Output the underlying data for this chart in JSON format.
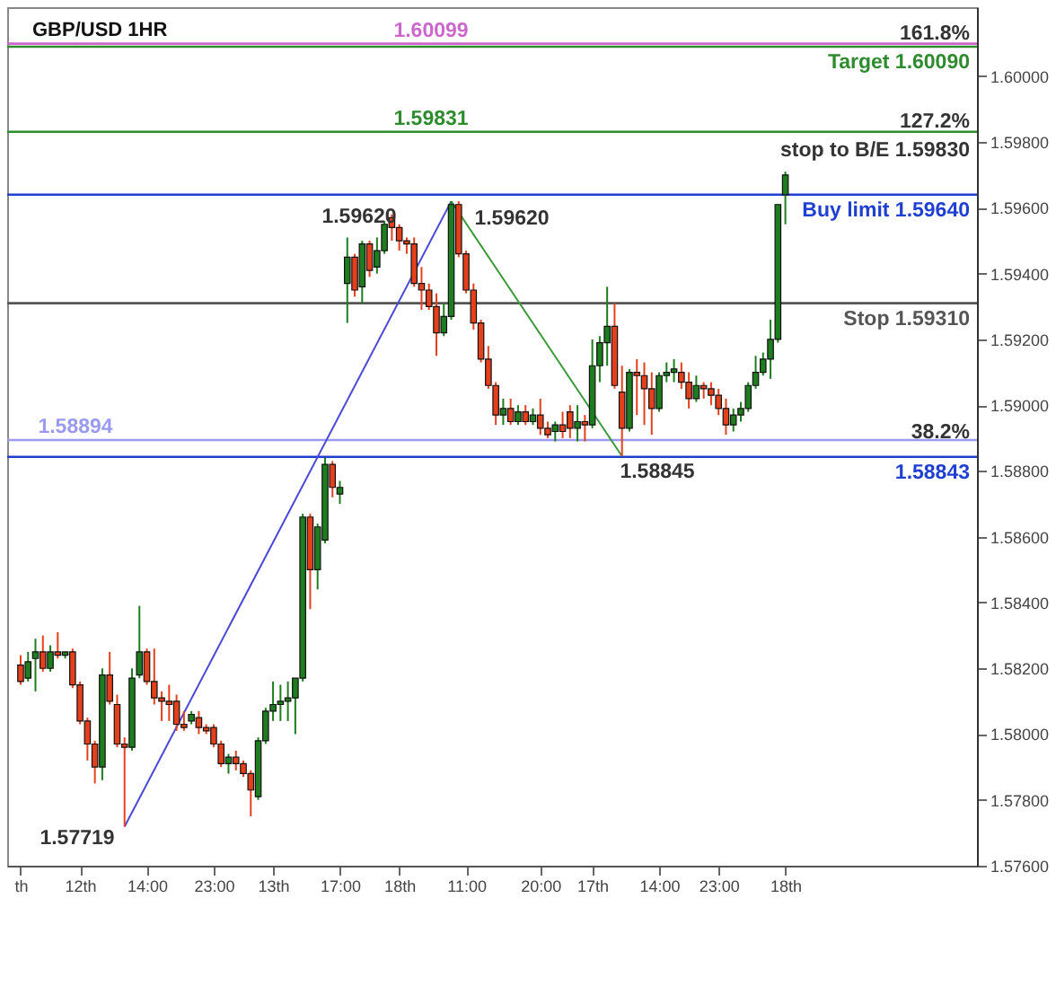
{
  "chart_data": {
    "type": "candlestick",
    "title": "GBP/USD 1HR",
    "categories": [
      "th",
      null,
      null,
      null,
      null,
      null,
      null,
      null,
      "12th",
      null,
      null,
      null,
      null,
      null,
      null,
      null,
      null,
      "14:00",
      null,
      null,
      null,
      null,
      null,
      null,
      null,
      null,
      "23:00",
      null,
      null,
      null,
      null,
      null,
      null,
      null,
      "13th",
      null,
      null,
      null,
      null,
      null,
      null,
      null,
      null,
      "17:00",
      null,
      null,
      null,
      null,
      null,
      null,
      null,
      "18th",
      null,
      null,
      null,
      null,
      null,
      null,
      null,
      null,
      "11:00",
      null,
      null,
      null,
      null,
      null,
      null,
      null,
      null,
      null,
      "20:00",
      null,
      null,
      null,
      null,
      null,
      null,
      "17th",
      null,
      null,
      null,
      null,
      null,
      null,
      null,
      null,
      "14:00",
      null,
      null,
      null,
      null,
      null,
      null,
      null,
      "23:00",
      null,
      null,
      null,
      null,
      null,
      null,
      null,
      null,
      "18th",
      null,
      null,
      null,
      null,
      null,
      null,
      null,
      null,
      null,
      null,
      null,
      null,
      null,
      null,
      null,
      null,
      null,
      null,
      null,
      null,
      null,
      null,
      null,
      null
    ],
    "ylim": [
      1.576,
      1.6021
    ],
    "yticks": [
      {
        "value": 1.576,
        "label": "1.57600"
      },
      {
        "value": 1.578,
        "label": "1.57800"
      },
      {
        "value": 1.58,
        "label": "1.58000"
      },
      {
        "value": 1.582,
        "label": "1.58200"
      },
      {
        "value": 1.584,
        "label": "1.58400"
      },
      {
        "value": 1.586,
        "label": "1.58600"
      },
      {
        "value": 1.588,
        "label": "1.58800"
      },
      {
        "value": 1.59,
        "label": "1.59000"
      },
      {
        "value": 1.592,
        "label": "1.59200"
      },
      {
        "value": 1.594,
        "label": "1.59400"
      },
      {
        "value": 1.596,
        "label": "1.59600"
      },
      {
        "value": 1.598,
        "label": "1.59800"
      },
      {
        "value": 1.6,
        "label": "1.60000"
      }
    ],
    "series": [
      {
        "type": "line",
        "color": "#4a4ad8",
        "values": [
          null,
          null,
          null,
          null,
          null,
          null,
          null,
          null,
          null,
          null,
          null,
          null,
          null,
          null,
          1.57719,
          null,
          null,
          null,
          null,
          null,
          null,
          null,
          null,
          null,
          null,
          null,
          null,
          null,
          null,
          null,
          null,
          null,
          null,
          null,
          null,
          null,
          null,
          null,
          null,
          null,
          null,
          null,
          null,
          null,
          null,
          null,
          null,
          null,
          null,
          null,
          null,
          null,
          null,
          null,
          null,
          null,
          null,
          null,
          1.5962,
          null,
          null,
          null,
          null,
          null,
          null,
          null,
          null,
          null,
          null,
          null,
          null,
          null,
          null,
          null,
          null,
          null,
          null,
          null,
          null,
          null,
          null,
          null,
          null,
          null,
          null,
          null,
          null,
          null,
          null,
          null,
          null,
          null,
          null,
          null,
          null,
          null,
          null,
          null,
          null,
          null,
          null,
          null,
          null,
          null,
          null,
          null,
          null,
          null,
          null,
          null,
          null,
          null,
          null,
          null,
          null,
          null,
          null,
          null,
          null,
          null,
          null,
          null,
          null,
          null,
          null,
          null,
          null,
          null
        ]
      },
      {
        "type": "line",
        "color": "#3a9a3a",
        "values": [
          null,
          null,
          null,
          null,
          null,
          null,
          null,
          null,
          null,
          null,
          null,
          null,
          null,
          null,
          null,
          null,
          null,
          null,
          null,
          null,
          null,
          null,
          null,
          null,
          null,
          null,
          null,
          null,
          null,
          null,
          null,
          null,
          null,
          null,
          null,
          null,
          null,
          null,
          null,
          null,
          null,
          null,
          null,
          null,
          null,
          null,
          null,
          null,
          null,
          null,
          null,
          null,
          null,
          null,
          null,
          null,
          null,
          null,
          1.5962,
          null,
          null,
          null,
          null,
          null,
          null,
          null,
          null,
          null,
          null,
          null,
          null,
          null,
          null,
          null,
          null,
          null,
          null,
          null,
          null,
          null,
          null,
          1.58845,
          null,
          null,
          null,
          null,
          null,
          null,
          null,
          null,
          null,
          null,
          null,
          null,
          null,
          null,
          null,
          null,
          null,
          null,
          null,
          null,
          null,
          null,
          null,
          null,
          null,
          null,
          null,
          null,
          null,
          null,
          null,
          null,
          null,
          null,
          null,
          null,
          null,
          null,
          null,
          null,
          null,
          null,
          null,
          null,
          null,
          null
        ]
      },
      {
        "colors": [
          "#e5401c",
          "#1e7d1e",
          "#1e7d1e",
          "#e5401c",
          "#1e7d1e",
          "#e5401c",
          "#1e7d1e",
          "#e5401c",
          "#e5401c",
          "#e5401c",
          "#e5401c",
          "#1e7d1e",
          "#e5401c",
          "#e5401c",
          "#e5401c",
          "#1e7d1e",
          "#1e7d1e",
          "#e5401c",
          "#e5401c",
          "#e5401c",
          "#e5401c",
          "#e5401c",
          "#e5401c",
          "#1e7d1e",
          "#e5401c",
          "#e5401c",
          "#e5401c",
          "#e5401c",
          "#1e7d1e",
          "#e5401c",
          "#e5401c",
          "#e5401c",
          "#1e7d1e",
          "#1e7d1e",
          "#1e7d1e",
          "#1e7d1e",
          "#1e7d1e",
          "#1e7d1e",
          "#1e7d1e",
          "#e5401c",
          "#1e7d1e",
          "#1e7d1e",
          "#e5401c",
          "#1e7d1e",
          "#1e7d1e",
          "#e5401c",
          "#1e7d1e",
          "#e5401c",
          "#1e7d1e",
          "#1e7d1e",
          "#e5401c",
          "#e5401c",
          "#e5401c",
          "#e5401c",
          "#e5401c",
          "#e5401c",
          "#e5401c",
          "#1e7d1e",
          "#1e7d1e",
          "#e5401c",
          "#e5401c",
          "#e5401c",
          "#e5401c",
          "#e5401c",
          "#e5401c",
          "#1e7d1e",
          "#e5401c",
          "#1e7d1e",
          "#e5401c",
          "#1e7d1e",
          "#e5401c",
          "#e5401c",
          "#1e7d1e",
          "#e5401c",
          "#e5401c",
          "#1e7d1e",
          "#e5401c",
          "#1e7d1e",
          "#1e7d1e",
          "#1e7d1e",
          "#e5401c",
          "#e5401c",
          "#1e7d1e",
          "#e5401c",
          "#e5401c",
          "#e5401c",
          "#1e7d1e",
          "#1e7d1e",
          "#1e7d1e",
          "#e5401c",
          "#e5401c",
          "#1e7d1e",
          "#e5401c",
          "#e5401c",
          "#e5401c",
          "#e5401c",
          "#1e7d1e",
          "#1e7d1e",
          "#1e7d1e",
          "#1e7d1e",
          "#1e7d1e",
          "#1e7d1e",
          "#1e7d1e",
          "#1e7d1e",
          null,
          null,
          null,
          null,
          null,
          null,
          null,
          null,
          null,
          null,
          null,
          null,
          null,
          null,
          null,
          null,
          null,
          null,
          null,
          null,
          null,
          null,
          null,
          null
        ],
        "ohlc": [
          [
            1.5821,
            1.5824,
            1.5815,
            1.5816
          ],
          [
            1.5817,
            1.5825,
            1.5816,
            1.5822
          ],
          [
            1.5823,
            1.5829,
            1.5813,
            1.5825
          ],
          [
            1.5825,
            1.583,
            1.5819,
            1.582
          ],
          [
            1.582,
            1.5827,
            1.5819,
            1.5825
          ],
          [
            1.5825,
            1.5831,
            1.5823,
            1.5824
          ],
          [
            1.5824,
            1.5825,
            1.5823,
            1.5825
          ],
          [
            1.5825,
            1.5826,
            1.5814,
            1.5815
          ],
          [
            1.5815,
            1.5816,
            1.5803,
            1.5804
          ],
          [
            1.5804,
            1.5805,
            1.5792,
            1.5797
          ],
          [
            1.5797,
            1.5798,
            1.5785,
            1.579
          ],
          [
            1.579,
            1.582,
            1.5786,
            1.5818
          ],
          [
            1.5818,
            1.5825,
            1.5809,
            1.581
          ],
          [
            1.5809,
            1.5812,
            1.5796,
            1.5797
          ],
          [
            1.5797,
            1.5799,
            1.57719,
            1.5796
          ],
          [
            1.5796,
            1.582,
            1.5795,
            1.5817
          ],
          [
            1.5818,
            1.5839,
            1.5817,
            1.5825
          ],
          [
            1.5825,
            1.5826,
            1.5815,
            1.5816
          ],
          [
            1.5816,
            1.5826,
            1.5809,
            1.5811
          ],
          [
            1.5811,
            1.5813,
            1.5804,
            1.581
          ],
          [
            1.581,
            1.5815,
            1.5804,
            1.5809
          ],
          [
            1.581,
            1.5812,
            1.5801,
            1.5803
          ],
          [
            1.5803,
            1.5807,
            1.5801,
            1.5802
          ],
          [
            1.5804,
            1.5807,
            1.5803,
            1.5806
          ],
          [
            1.5805,
            1.5807,
            1.58,
            1.5802
          ],
          [
            1.5802,
            1.5803,
            1.58,
            1.5801
          ],
          [
            1.5802,
            1.5803,
            1.5796,
            1.5797
          ],
          [
            1.5797,
            1.5798,
            1.579,
            1.5791
          ],
          [
            1.5791,
            1.5794,
            1.5788,
            1.5793
          ],
          [
            1.5793,
            1.5795,
            1.5789,
            1.5791
          ],
          [
            1.5791,
            1.5792,
            1.5787,
            1.5788
          ],
          [
            1.5788,
            1.5789,
            1.5775,
            1.5783
          ],
          [
            1.5781,
            1.5799,
            1.578,
            1.5798
          ],
          [
            1.5798,
            1.5808,
            1.5797,
            1.5807
          ],
          [
            1.5807,
            1.5816,
            1.5804,
            1.5809
          ],
          [
            1.5809,
            1.5815,
            1.5804,
            1.581
          ],
          [
            1.581,
            1.5816,
            1.5804,
            1.5811
          ],
          [
            1.5811,
            1.5817,
            1.58,
            1.5817
          ],
          [
            1.5817,
            1.5867,
            1.5816,
            1.5866
          ],
          [
            1.5866,
            1.5867,
            1.5838,
            1.585
          ],
          [
            1.585,
            1.5864,
            1.5844,
            1.5863
          ],
          [
            1.5859,
            1.5884,
            1.5858,
            1.5882
          ],
          [
            1.5882,
            1.5883,
            1.5872,
            1.5875
          ],
          [
            1.5873,
            1.5877,
            1.587,
            1.5875
          ],
          [
            1.5937,
            1.5951,
            1.5925,
            1.5945
          ],
          [
            1.5945,
            1.5946,
            1.5933,
            1.5935
          ],
          [
            1.5936,
            1.595,
            1.5931,
            1.5949
          ],
          [
            1.5949,
            1.595,
            1.5939,
            1.5941
          ],
          [
            1.5942,
            1.5951,
            1.594,
            1.5947
          ],
          [
            1.5947,
            1.5956,
            1.5946,
            1.5955
          ],
          [
            1.5957,
            1.5958,
            1.595,
            1.5954
          ],
          [
            1.5954,
            1.5955,
            1.5947,
            1.595
          ],
          [
            1.595,
            1.5951,
            1.5946,
            1.5949
          ],
          [
            1.5949,
            1.5951,
            1.5936,
            1.5937
          ],
          [
            1.5937,
            1.5942,
            1.5929,
            1.5935
          ],
          [
            1.5935,
            1.5937,
            1.5929,
            1.593
          ],
          [
            1.593,
            1.5934,
            1.5915,
            1.5922
          ],
          [
            1.5922,
            1.5931,
            1.5921,
            1.5927
          ],
          [
            1.5927,
            1.5962,
            1.5926,
            1.5961
          ],
          [
            1.5961,
            1.5962,
            1.5945,
            1.5946
          ],
          [
            1.5946,
            1.5947,
            1.5934,
            1.5935
          ],
          [
            1.5935,
            1.5937,
            1.5923,
            1.5925
          ],
          [
            1.5925,
            1.5926,
            1.5913,
            1.5914
          ],
          [
            1.5914,
            1.5918,
            1.5905,
            1.5906
          ],
          [
            1.5906,
            1.5907,
            1.5894,
            1.5897
          ],
          [
            1.5897,
            1.5902,
            1.5894,
            1.5899
          ],
          [
            1.5899,
            1.5902,
            1.5894,
            1.5895
          ],
          [
            1.5895,
            1.59,
            1.5894,
            1.5898
          ],
          [
            1.5898,
            1.59,
            1.5894,
            1.5895
          ],
          [
            1.5895,
            1.5899,
            1.5894,
            1.5897
          ],
          [
            1.5897,
            1.5902,
            1.5891,
            1.5893
          ],
          [
            1.5893,
            1.5895,
            1.589,
            1.5891
          ],
          [
            1.5892,
            1.5895,
            1.5889,
            1.5894
          ],
          [
            1.5894,
            1.5898,
            1.589,
            1.5892
          ],
          [
            1.5898,
            1.59,
            1.589,
            1.5893
          ],
          [
            1.5893,
            1.59,
            1.5889,
            1.5895
          ],
          [
            1.5895,
            1.5897,
            1.5889,
            1.5894
          ],
          [
            1.5894,
            1.592,
            1.5893,
            1.5912
          ],
          [
            1.5912,
            1.5921,
            1.5907,
            1.5919
          ],
          [
            1.5919,
            1.5936,
            1.5912,
            1.5924
          ],
          [
            1.5924,
            1.5931,
            1.5905,
            1.5906
          ],
          [
            1.5904,
            1.5912,
            1.58845,
            1.5893
          ],
          [
            1.5893,
            1.5911,
            1.5892,
            1.591
          ],
          [
            1.591,
            1.5914,
            1.5897,
            1.5909
          ],
          [
            1.5909,
            1.5913,
            1.5894,
            1.5905
          ],
          [
            1.5905,
            1.591,
            1.5891,
            1.5899
          ],
          [
            1.5899,
            1.591,
            1.5898,
            1.5909
          ],
          [
            1.5909,
            1.5913,
            1.5907,
            1.591
          ],
          [
            1.591,
            1.5914,
            1.5907,
            1.5911
          ],
          [
            1.591,
            1.5913,
            1.5905,
            1.5907
          ],
          [
            1.5907,
            1.591,
            1.5899,
            1.5902
          ],
          [
            1.5902,
            1.5909,
            1.5901,
            1.5906
          ],
          [
            1.5906,
            1.5907,
            1.5902,
            1.5905
          ],
          [
            1.5905,
            1.5907,
            1.59,
            1.5903
          ],
          [
            1.5903,
            1.5905,
            1.5897,
            1.5899
          ],
          [
            1.5899,
            1.5902,
            1.5891,
            1.5894
          ],
          [
            1.5894,
            1.5899,
            1.5892,
            1.5897
          ],
          [
            1.5897,
            1.5901,
            1.5895,
            1.5899
          ],
          [
            1.5899,
            1.5907,
            1.5898,
            1.5906
          ],
          [
            1.5906,
            1.5915,
            1.5905,
            1.591
          ],
          [
            1.591,
            1.5916,
            1.5909,
            1.5914
          ],
          [
            1.5914,
            1.5926,
            1.5908,
            1.592
          ],
          [
            1.592,
            1.5961,
            1.5919,
            1.5961
          ],
          [
            1.5964,
            1.5971,
            1.5955,
            1.597
          ],
          null,
          null,
          null,
          null,
          null,
          null,
          null,
          null,
          null,
          null,
          null,
          null,
          null,
          null,
          null,
          null,
          null,
          null,
          null,
          null,
          null,
          null,
          null,
          null
        ]
      }
    ],
    "ref_lines": [
      {
        "axis": "y",
        "value": 1.60099,
        "label": "1.60099",
        "color": "#cc66cc"
      },
      {
        "axis": "y",
        "value": 1.6009,
        "label": "Target 1.60090",
        "color": "#2e8b2e"
      },
      {
        "axis": "y",
        "value": 1.59831,
        "label": "1.59831",
        "color": "#2e8b2e"
      },
      {
        "axis": "y",
        "value": 1.5964,
        "label": "Buy limit 1.59640",
        "color": "#1f3fd0"
      },
      {
        "axis": "y",
        "value": 1.5931,
        "label": "Stop 1.59310",
        "color": "#555555"
      },
      {
        "axis": "y",
        "value": 1.58894,
        "label": "1.58894",
        "color": "#9a9af0"
      },
      {
        "axis": "y",
        "value": 1.58843,
        "label": "1.58843",
        "color": "#1f3fd0"
      }
    ],
    "annotations": [
      "161.8%",
      "127.2%",
      "38.2%",
      "1.59620",
      "1.59620",
      "1.58845",
      "1.57719",
      "stop to B/E 1.59830"
    ]
  }
}
